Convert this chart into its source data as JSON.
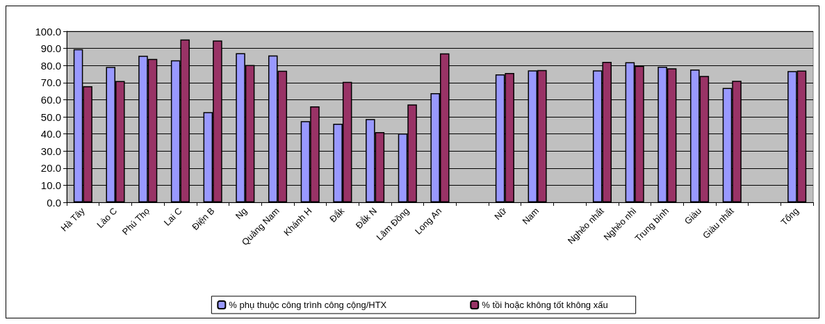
{
  "chart_data": {
    "type": "bar",
    "categories": [
      "Hà Tây",
      "Lào C",
      "Phú Thọ",
      "Lai C",
      "Điện B",
      "Ng",
      "Quảng Nam",
      "Khánh H",
      "Đắk",
      "Đắk N",
      "Lâm Đồng",
      "Long An",
      null,
      "Nữ",
      "Nam",
      null,
      "Nghèo nhất",
      "Nghèo nhì",
      "Trung bình",
      "Giàu",
      "Giàu nhất",
      null,
      "Tổng"
    ],
    "series": [
      {
        "name": "% phụ thuộc công trình công cộng/HTX",
        "color": "#9999ff",
        "values": [
          89.5,
          79.2,
          85.7,
          83.0,
          52.7,
          87.2,
          85.9,
          47.5,
          45.9,
          48.7,
          40.2,
          63.8,
          null,
          74.8,
          77.1,
          null,
          77.1,
          81.9,
          79.3,
          77.6,
          66.9,
          null,
          76.7
        ]
      },
      {
        "name": "% tồi hoặc không tốt không xấu",
        "color": "#993366",
        "values": [
          67.9,
          70.9,
          83.8,
          95.2,
          94.6,
          80.3,
          76.9,
          56.1,
          70.4,
          41.1,
          57.2,
          87.1,
          null,
          75.6,
          77.3,
          null,
          82.1,
          79.8,
          78.4,
          73.9,
          71.0,
          null,
          77.0
        ]
      }
    ],
    "ylim": [
      0,
      100
    ],
    "yticks": [
      {
        "value": 0,
        "label": "0.0"
      },
      {
        "value": 10,
        "label": "10.0"
      },
      {
        "value": 20,
        "label": "20.0"
      },
      {
        "value": 30,
        "label": "30.0"
      },
      {
        "value": 40,
        "label": "40.0"
      },
      {
        "value": 50,
        "label": "50.0"
      },
      {
        "value": 60,
        "label": "60.0"
      },
      {
        "value": 70,
        "label": "70.0"
      },
      {
        "value": 80,
        "label": "80.0"
      },
      {
        "value": 90,
        "label": "90.0"
      },
      {
        "value": 100,
        "label": "100.0"
      }
    ],
    "grid": "y",
    "legend": "bottom"
  }
}
